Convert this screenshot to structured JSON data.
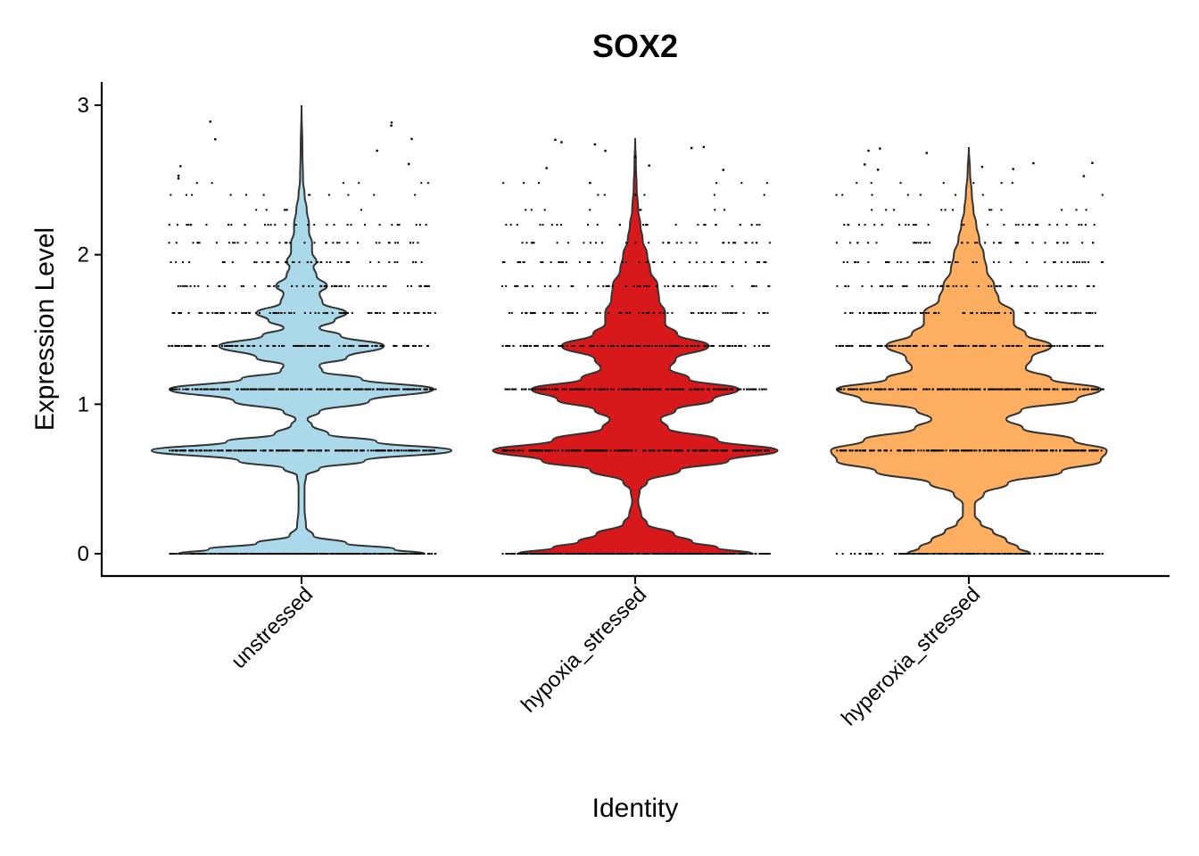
{
  "chart_data": {
    "type": "violin",
    "title": "SOX2",
    "xlabel": "Identity",
    "ylabel": "Expression Level",
    "ylim": [
      -0.15,
      3.15
    ],
    "yticks": [
      0,
      1,
      2,
      3
    ],
    "ytick_labels": [
      "0",
      "1",
      "2",
      "3"
    ],
    "categories": [
      "unstressed",
      "hypoxia_stressed",
      "hyperoxia_stressed"
    ],
    "grid": false,
    "legend": "none",
    "jitter_points": true,
    "colors": {
      "unstressed": "#ABD9E9",
      "hypoxia_stressed": "#D7191C",
      "hyperoxia_stressed": "#FDAE61",
      "outline": "#333333",
      "points": "#000000"
    },
    "expression_levels": [
      0,
      0.69,
      1.1,
      1.39,
      1.61,
      1.79,
      1.95,
      2.08,
      2.2,
      2.3,
      2.4,
      2.48
    ],
    "series": [
      {
        "category": "unstressed",
        "max_value": 3.0,
        "density": [
          [
            0.0,
            0.82
          ],
          [
            0.03,
            0.62
          ],
          [
            0.07,
            0.3
          ],
          [
            0.12,
            0.08
          ],
          [
            0.18,
            0.03
          ],
          [
            0.3,
            0.02
          ],
          [
            0.45,
            0.02
          ],
          [
            0.52,
            0.03
          ],
          [
            0.57,
            0.12
          ],
          [
            0.62,
            0.42
          ],
          [
            0.69,
            1.0
          ],
          [
            0.75,
            0.5
          ],
          [
            0.8,
            0.18
          ],
          [
            0.86,
            0.07
          ],
          [
            0.9,
            0.04
          ],
          [
            0.95,
            0.12
          ],
          [
            1.02,
            0.45
          ],
          [
            1.1,
            0.88
          ],
          [
            1.17,
            0.4
          ],
          [
            1.22,
            0.14
          ],
          [
            1.26,
            0.12
          ],
          [
            1.31,
            0.3
          ],
          [
            1.39,
            0.55
          ],
          [
            1.46,
            0.26
          ],
          [
            1.51,
            0.12
          ],
          [
            1.56,
            0.22
          ],
          [
            1.61,
            0.3
          ],
          [
            1.68,
            0.14
          ],
          [
            1.74,
            0.12
          ],
          [
            1.79,
            0.17
          ],
          [
            1.86,
            0.1
          ],
          [
            1.92,
            0.08
          ],
          [
            1.95,
            0.1
          ],
          [
            2.02,
            0.07
          ],
          [
            2.08,
            0.07
          ],
          [
            2.15,
            0.05
          ],
          [
            2.2,
            0.05
          ],
          [
            2.3,
            0.035
          ],
          [
            2.4,
            0.02
          ],
          [
            2.5,
            0.01
          ],
          [
            2.7,
            0.006
          ],
          [
            3.0,
            0.0
          ]
        ]
      },
      {
        "category": "hypoxia_stressed",
        "max_value": 2.78,
        "density": [
          [
            0.0,
            0.78
          ],
          [
            0.04,
            0.55
          ],
          [
            0.08,
            0.38
          ],
          [
            0.13,
            0.26
          ],
          [
            0.2,
            0.08
          ],
          [
            0.26,
            0.04
          ],
          [
            0.35,
            0.02
          ],
          [
            0.42,
            0.03
          ],
          [
            0.48,
            0.08
          ],
          [
            0.56,
            0.3
          ],
          [
            0.62,
            0.62
          ],
          [
            0.69,
            0.95
          ],
          [
            0.76,
            0.55
          ],
          [
            0.84,
            0.22
          ],
          [
            0.9,
            0.17
          ],
          [
            0.96,
            0.27
          ],
          [
            1.03,
            0.52
          ],
          [
            1.1,
            0.69
          ],
          [
            1.17,
            0.36
          ],
          [
            1.24,
            0.23
          ],
          [
            1.3,
            0.27
          ],
          [
            1.39,
            0.49
          ],
          [
            1.47,
            0.28
          ],
          [
            1.54,
            0.2
          ],
          [
            1.61,
            0.2
          ],
          [
            1.7,
            0.16
          ],
          [
            1.79,
            0.15
          ],
          [
            1.9,
            0.1
          ],
          [
            2.0,
            0.08
          ],
          [
            2.1,
            0.05
          ],
          [
            2.2,
            0.035
          ],
          [
            2.3,
            0.02
          ],
          [
            2.45,
            0.01
          ],
          [
            2.6,
            0.005
          ],
          [
            2.78,
            0.0
          ]
        ]
      },
      {
        "category": "hyperoxia_stressed",
        "max_value": 2.72,
        "density": [
          [
            0.0,
            0.41
          ],
          [
            0.04,
            0.33
          ],
          [
            0.09,
            0.25
          ],
          [
            0.15,
            0.16
          ],
          [
            0.2,
            0.08
          ],
          [
            0.26,
            0.04
          ],
          [
            0.33,
            0.04
          ],
          [
            0.4,
            0.1
          ],
          [
            0.47,
            0.26
          ],
          [
            0.55,
            0.62
          ],
          [
            0.62,
            0.88
          ],
          [
            0.69,
            0.92
          ],
          [
            0.76,
            0.7
          ],
          [
            0.84,
            0.36
          ],
          [
            0.9,
            0.25
          ],
          [
            0.96,
            0.35
          ],
          [
            1.03,
            0.72
          ],
          [
            1.1,
            0.88
          ],
          [
            1.17,
            0.55
          ],
          [
            1.24,
            0.38
          ],
          [
            1.31,
            0.42
          ],
          [
            1.39,
            0.55
          ],
          [
            1.47,
            0.38
          ],
          [
            1.54,
            0.3
          ],
          [
            1.61,
            0.3
          ],
          [
            1.7,
            0.2
          ],
          [
            1.79,
            0.17
          ],
          [
            1.9,
            0.12
          ],
          [
            2.0,
            0.1
          ],
          [
            2.1,
            0.07
          ],
          [
            2.2,
            0.05
          ],
          [
            2.3,
            0.03
          ],
          [
            2.4,
            0.02
          ],
          [
            2.55,
            0.008
          ],
          [
            2.72,
            0.0
          ]
        ]
      }
    ]
  }
}
